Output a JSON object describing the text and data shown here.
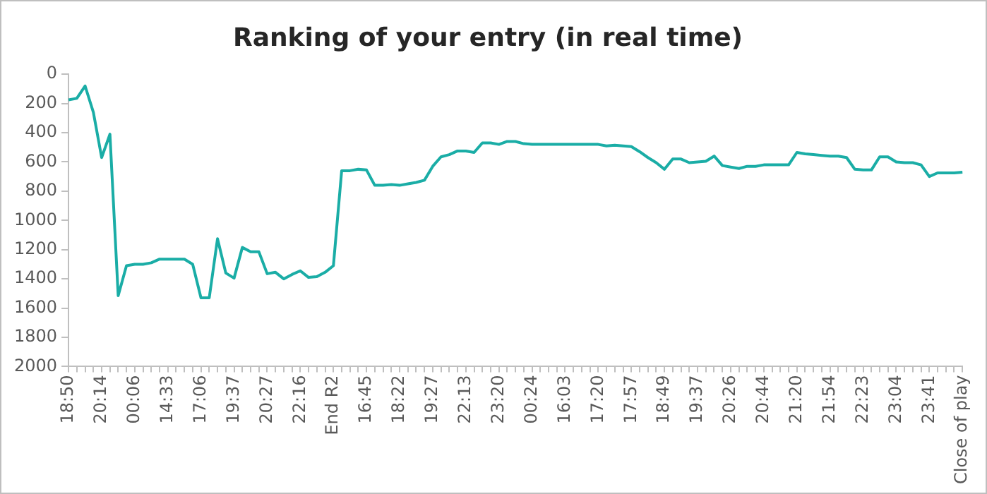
{
  "chart_data": {
    "type": "line",
    "title": "Ranking of your entry (in real time)",
    "categories": [
      "18:50",
      null,
      null,
      null,
      "20:14",
      null,
      null,
      null,
      "00:06",
      null,
      null,
      null,
      "14:33",
      null,
      null,
      null,
      "17:06",
      null,
      null,
      null,
      "19:37",
      null,
      null,
      null,
      "20:27",
      null,
      null,
      null,
      "22:16",
      null,
      null,
      null,
      "End R2",
      null,
      null,
      null,
      "16:45",
      null,
      null,
      null,
      "18:22",
      null,
      null,
      null,
      "19:27",
      null,
      null,
      null,
      "22:13",
      null,
      null,
      null,
      "23:20",
      null,
      null,
      null,
      "00:24",
      null,
      null,
      null,
      "16:03",
      null,
      null,
      null,
      "17:20",
      null,
      null,
      null,
      "17:57",
      null,
      null,
      null,
      "18:49",
      null,
      null,
      null,
      "19:37",
      null,
      null,
      null,
      "20:26",
      null,
      null,
      null,
      "20:44",
      null,
      null,
      null,
      "21:20",
      null,
      null,
      null,
      "21:54",
      null,
      null,
      null,
      "22:23",
      null,
      null,
      null,
      "23:04",
      null,
      null,
      null,
      "23:41",
      null,
      null,
      null,
      "Close of play"
    ],
    "series": [
      {
        "color": "#1aada6",
        "values": [
          175,
          165,
          80,
          260,
          570,
          410,
          1515,
          1310,
          1300,
          1300,
          1290,
          1265,
          1265,
          1265,
          1265,
          1300,
          1530,
          1530,
          1125,
          1360,
          1395,
          1185,
          1215,
          1215,
          1365,
          1355,
          1400,
          1370,
          1345,
          1390,
          1385,
          1355,
          1310,
          660,
          660,
          650,
          655,
          760,
          760,
          755,
          760,
          750,
          740,
          725,
          630,
          565,
          550,
          525,
          525,
          535,
          470,
          470,
          480,
          460,
          460,
          475,
          480,
          480,
          480,
          480,
          480,
          480,
          480,
          480,
          480,
          490,
          485,
          490,
          495,
          530,
          570,
          605,
          650,
          580,
          580,
          605,
          600,
          595,
          560,
          625,
          635,
          645,
          630,
          630,
          620,
          620,
          620,
          620,
          535,
          545,
          550,
          555,
          560,
          560,
          570,
          650,
          655,
          655,
          565,
          565,
          600,
          605,
          605,
          620,
          700,
          675,
          675,
          675,
          670
        ]
      }
    ],
    "ylim": [
      2000,
      0
    ],
    "yticks": [
      0,
      200,
      400,
      600,
      800,
      1000,
      1200,
      1400,
      1600,
      1800,
      2000
    ]
  }
}
